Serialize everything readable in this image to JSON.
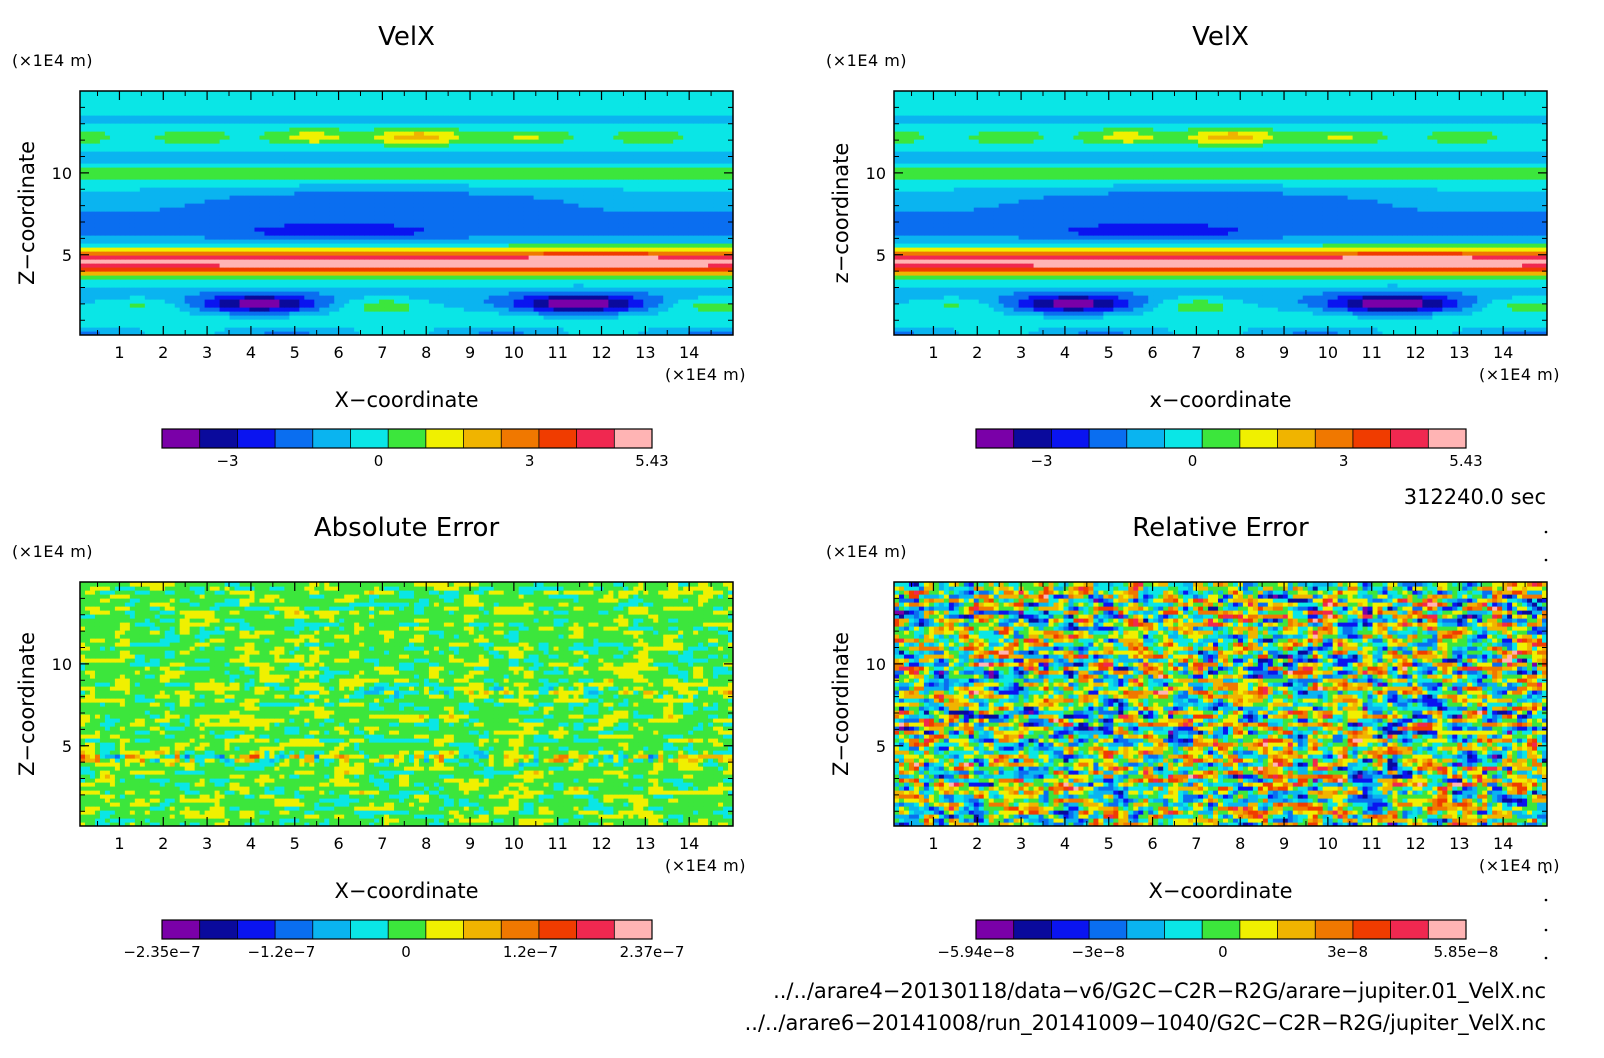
{
  "chart_data": [
    {
      "type": "heatmap",
      "title": "VelX",
      "xlabel": "X−coordinate",
      "ylabel": "Z−coordinate",
      "x_unit": "(×1E4 m)",
      "y_unit": "(×1E4 m)",
      "xlim": [
        0.1,
        15.0
      ],
      "ylim": [
        0.1,
        15.0
      ],
      "x_ticks": [
        "1",
        "2",
        "3",
        "4",
        "5",
        "6",
        "7",
        "8",
        "9",
        "10",
        "11",
        "12",
        "13",
        "14"
      ],
      "y_ticks": [
        "5",
        "10"
      ],
      "colorbar": {
        "min": -4.3,
        "max": 5.43,
        "tick_values": [
          -3,
          0,
          3,
          5.43
        ],
        "tick_labels": [
          "−3",
          "0",
          "3",
          "5.43"
        ]
      },
      "field": "velx"
    },
    {
      "type": "heatmap",
      "title": "VelX",
      "xlabel": "x−coordinate",
      "ylabel": "z−coordinate",
      "x_unit": "(×1E4 m)",
      "y_unit": "(×1E4 m)",
      "xlim": [
        0.1,
        15.0
      ],
      "ylim": [
        0.1,
        15.0
      ],
      "x_ticks": [
        "1",
        "2",
        "3",
        "4",
        "5",
        "6",
        "7",
        "8",
        "9",
        "10",
        "11",
        "12",
        "13",
        "14"
      ],
      "y_ticks": [
        "5",
        "10"
      ],
      "colorbar": {
        "min": -4.3,
        "max": 5.43,
        "tick_values": [
          -3,
          0,
          3,
          5.43
        ],
        "tick_labels": [
          "−3",
          "0",
          "3",
          "5.43"
        ]
      },
      "field": "velx"
    },
    {
      "type": "heatmap",
      "title": "Absolute Error",
      "xlabel": "X−coordinate",
      "ylabel": "Z−coordinate",
      "x_unit": "(×1E4 m)",
      "y_unit": "(×1E4 m)",
      "xlim": [
        0.1,
        15.0
      ],
      "ylim": [
        0.1,
        15.0
      ],
      "x_ticks": [
        "1",
        "2",
        "3",
        "4",
        "5",
        "6",
        "7",
        "8",
        "9",
        "10",
        "11",
        "12",
        "13",
        "14"
      ],
      "y_ticks": [
        "5",
        "10"
      ],
      "colorbar": {
        "min": -2.35e-07,
        "max": 2.37e-07,
        "tick_values": [
          -2.35e-07,
          -1.2e-07,
          0,
          1.2e-07,
          2.37e-07
        ],
        "tick_labels": [
          "−2.35e−7",
          "−1.2e−7",
          "0",
          "1.2e−7",
          "2.37e−7"
        ]
      },
      "field": "abs_error"
    },
    {
      "type": "heatmap",
      "title": "Relative Error",
      "xlabel": "X−coordinate",
      "ylabel": "Z−coordinate",
      "x_unit": "(×1E4 m)",
      "y_unit": "(×1E4 m)",
      "xlim": [
        0.1,
        15.0
      ],
      "ylim": [
        0.1,
        15.0
      ],
      "x_ticks": [
        "1",
        "2",
        "3",
        "4",
        "5",
        "6",
        "7",
        "8",
        "9",
        "10",
        "11",
        "12",
        "13",
        "14"
      ],
      "y_ticks": [
        "5",
        "10"
      ],
      "colorbar": {
        "min": -5.94e-08,
        "max": 5.85e-08,
        "tick_values": [
          -5.94e-08,
          -3e-08,
          0,
          3e-08,
          5.85e-08
        ],
        "tick_labels": [
          "−5.94e−8",
          "−3e−8",
          "0",
          "3e−8",
          "5.85e−8"
        ]
      },
      "field": "rel_error"
    }
  ],
  "palette": [
    "#7a00a8",
    "#0a0a9c",
    "#0a14f0",
    "#0a6ef0",
    "#0ab4f0",
    "#0ae6e6",
    "#3ce63c",
    "#f0f000",
    "#f0b400",
    "#f07800",
    "#f03c00",
    "#f02850",
    "#ffb4b4"
  ],
  "info": {
    "time": "312240.0 sec",
    "file1": "../../arare4−20130118/data−v6/G2C−C2R−R2G/arare−jupiter.01_VelX.nc",
    "file2": "../../arare6−20141008/run_20141009−1040/G2C−C2R−R2G/jupiter_VelX.nc"
  }
}
